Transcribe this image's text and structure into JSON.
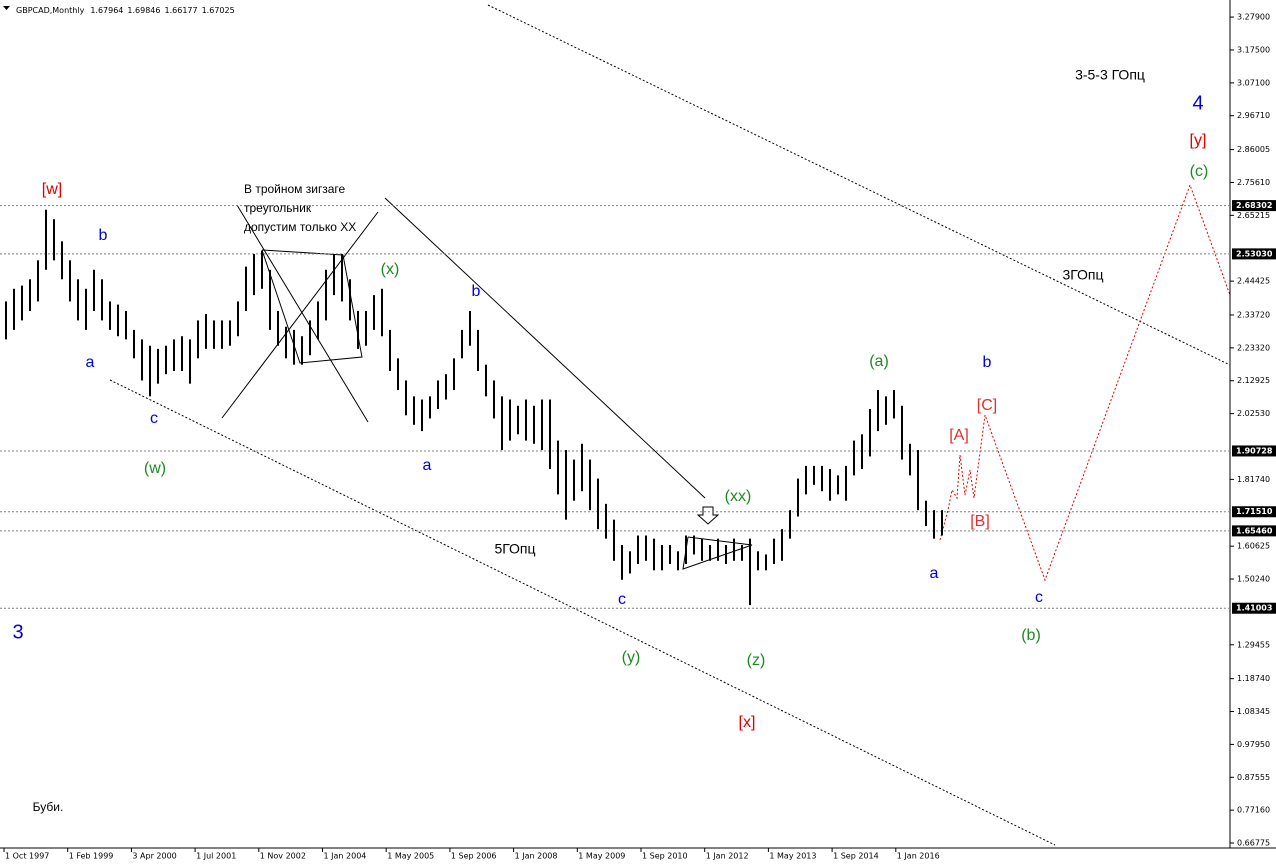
{
  "header": {
    "symbol": "GBPCAD,Monthly",
    "ohlc": [
      1.67964,
      1.69846,
      1.66177,
      1.67025
    ]
  },
  "chart_data": {
    "type": "hlbar",
    "color": "#000000",
    "high": [
      2.38,
      2.42,
      2.43,
      2.45,
      2.51,
      2.67,
      2.64,
      2.57,
      2.51,
      2.45,
      2.42,
      2.48,
      2.45,
      2.38,
      2.37,
      2.35,
      2.29,
      2.26,
      2.24,
      2.23,
      2.24,
      2.26,
      2.27,
      2.26,
      2.32,
      2.34,
      2.32,
      2.32,
      2.32,
      2.38,
      2.49,
      2.53,
      2.54,
      2.48,
      2.35,
      2.3,
      2.29,
      2.27,
      2.32,
      2.38,
      2.48,
      2.53,
      2.53,
      2.45,
      2.35,
      2.35,
      2.4,
      2.42,
      2.29,
      2.2,
      2.13,
      2.08,
      2.07,
      2.08,
      2.13,
      2.15,
      2.2,
      2.29,
      2.35,
      2.29,
      2.18,
      2.13,
      2.08,
      2.07,
      2.05,
      2.07,
      2.05,
      2.07,
      2.07,
      1.94,
      1.91,
      1.88,
      1.93,
      1.88,
      1.82,
      1.74,
      1.69,
      1.61,
      1.59,
      1.64,
      1.64,
      1.63,
      1.61,
      1.61,
      1.59,
      1.64,
      1.64,
      1.63,
      1.61,
      1.63,
      1.61,
      1.63,
      1.61,
      1.63,
      1.59,
      1.58,
      1.63,
      1.66,
      1.72,
      1.82,
      1.86,
      1.86,
      1.86,
      1.85,
      1.83,
      1.86,
      1.94,
      1.96,
      2.04,
      2.1,
      2.08,
      2.1,
      2.05,
      1.93,
      1.91,
      1.75,
      1.72,
      1.72
    ],
    "low": [
      2.26,
      2.29,
      2.32,
      2.35,
      2.38,
      2.48,
      2.51,
      2.45,
      2.38,
      2.32,
      2.29,
      2.35,
      2.32,
      2.29,
      2.27,
      2.26,
      2.2,
      2.13,
      2.08,
      2.12,
      2.15,
      2.16,
      2.16,
      2.12,
      2.2,
      2.23,
      2.23,
      2.23,
      2.24,
      2.27,
      2.35,
      2.4,
      2.42,
      2.29,
      2.24,
      2.2,
      2.18,
      2.18,
      2.21,
      2.26,
      2.32,
      2.4,
      2.38,
      2.32,
      2.23,
      2.24,
      2.29,
      2.27,
      2.16,
      2.1,
      2.02,
      1.99,
      1.97,
      2.01,
      2.04,
      2.07,
      2.1,
      2.2,
      2.24,
      2.16,
      2.08,
      2.01,
      1.91,
      1.94,
      1.96,
      1.94,
      1.93,
      1.91,
      1.85,
      1.77,
      1.69,
      1.75,
      1.78,
      1.72,
      1.66,
      1.63,
      1.56,
      1.5,
      1.52,
      1.55,
      1.56,
      1.53,
      1.53,
      1.55,
      1.53,
      1.55,
      1.58,
      1.56,
      1.56,
      1.56,
      1.55,
      1.56,
      1.56,
      1.42,
      1.53,
      1.53,
      1.55,
      1.56,
      1.63,
      1.7,
      1.77,
      1.8,
      1.78,
      1.75,
      1.77,
      1.75,
      1.83,
      1.85,
      1.89,
      1.97,
      1.99,
      2.01,
      1.88,
      1.83,
      1.72,
      1.67,
      1.63,
      1.64
    ],
    "ylim": [
      0.652,
      3.333
    ],
    "yticks": [
      {
        "value": 3.279,
        "label": "3.27900"
      },
      {
        "value": 3.175,
        "label": "3.17500"
      },
      {
        "value": 3.071,
        "label": "3.07100"
      },
      {
        "value": 2.9671,
        "label": "2.96710"
      },
      {
        "value": 2.86005,
        "label": "2.86005"
      },
      {
        "value": 2.7561,
        "label": "2.75610"
      },
      {
        "value": 2.65215,
        "label": "2.65215"
      },
      {
        "value": 2.44425,
        "label": "2.44425"
      },
      {
        "value": 2.3372,
        "label": "2.33720"
      },
      {
        "value": 2.2332,
        "label": "2.23320"
      },
      {
        "value": 2.12925,
        "label": "2.12925"
      },
      {
        "value": 2.0253,
        "label": "2.02530"
      },
      {
        "value": 1.8174,
        "label": "1.81740"
      },
      {
        "value": 1.60625,
        "label": "1.60625"
      },
      {
        "value": 1.5024,
        "label": "1.50240"
      },
      {
        "value": 1.29455,
        "label": "1.29455"
      },
      {
        "value": 1.1874,
        "label": "1.18740"
      },
      {
        "value": 1.08345,
        "label": "1.08345"
      },
      {
        "value": 0.9795,
        "label": "0.97950"
      },
      {
        "value": 0.87555,
        "label": "0.87555"
      },
      {
        "value": 0.7716,
        "label": "0.77160"
      },
      {
        "value": 0.66775,
        "label": "0.66775"
      }
    ],
    "levels": [
      {
        "value": 2.68302,
        "label": "2.68302"
      },
      {
        "value": 2.5303,
        "label": "2.53030"
      },
      {
        "value": 1.90728,
        "label": "1.90728"
      },
      {
        "value": 1.7151,
        "label": "1.71510"
      },
      {
        "value": 1.6546,
        "label": "1.65460"
      },
      {
        "value": 1.41003,
        "label": "1.41003"
      }
    ],
    "level_color": "#808080",
    "x_tick_labels": [
      "1 Oct 1997",
      "1 Feb 1999",
      "3 Apr 2000",
      "1 Jul 2001",
      "1 Nov 2002",
      "1 Jan 2004",
      "1 May 2005",
      "1 Sep 2006",
      "1 Jan 2008",
      "1 May 2009",
      "1 Sep 2010",
      "1 Jan 2012",
      "1 May 2013",
      "1 Sep 2014",
      "1 Jan 2016"
    ],
    "wave_labels": [
      {
        "text": "[w]",
        "color": "#e00000"
      },
      {
        "text": "b",
        "color": "#0000e0"
      },
      {
        "text": "a",
        "color": "#0000e0"
      },
      {
        "text": "c",
        "color": "#0000e0"
      },
      {
        "text": "(w)",
        "color": "#1f8a1f"
      },
      {
        "text": "(x)",
        "color": "#1f8a1f"
      },
      {
        "text": "b",
        "color": "#0000e0"
      },
      {
        "text": "a",
        "color": "#0000e0"
      },
      {
        "text": "c",
        "color": "#0000e0"
      },
      {
        "text": "(y)",
        "color": "#1f8a1f"
      },
      {
        "text": "(xx)",
        "color": "#1f8a1f"
      },
      {
        "text": "(z)",
        "color": "#1f8a1f"
      },
      {
        "text": "[x]",
        "color": "#e00000"
      },
      {
        "text": "(a)",
        "color": "#1f8a1f"
      },
      {
        "text": "b",
        "color": "#0000e0"
      },
      {
        "text": "[C]",
        "color": "#e03030"
      },
      {
        "text": "[A]",
        "color": "#e03030"
      },
      {
        "text": "[B]",
        "color": "#e03030"
      },
      {
        "text": "a",
        "color": "#0000e0"
      },
      {
        "text": "c",
        "color": "#0000e0"
      },
      {
        "text": "(b)",
        "color": "#1f8a1f"
      },
      {
        "text": "[y]",
        "color": "#e00000"
      },
      {
        "text": "(c)",
        "color": "#1f8a1f"
      },
      {
        "text": "4",
        "color": "#0000e0"
      },
      {
        "text": "3",
        "color": "#0000e0"
      },
      {
        "text": "3-5-3 ГОпц",
        "color": "#000000"
      },
      {
        "text": "3ГОпц",
        "color": "#000000"
      },
      {
        "text": "5ГОпц",
        "color": "#000000"
      },
      {
        "text": "Буби.",
        "color": "#000000"
      }
    ],
    "note": [
      "В тройном зигзаге",
      "треугольник",
      "допустим только XX"
    ]
  }
}
